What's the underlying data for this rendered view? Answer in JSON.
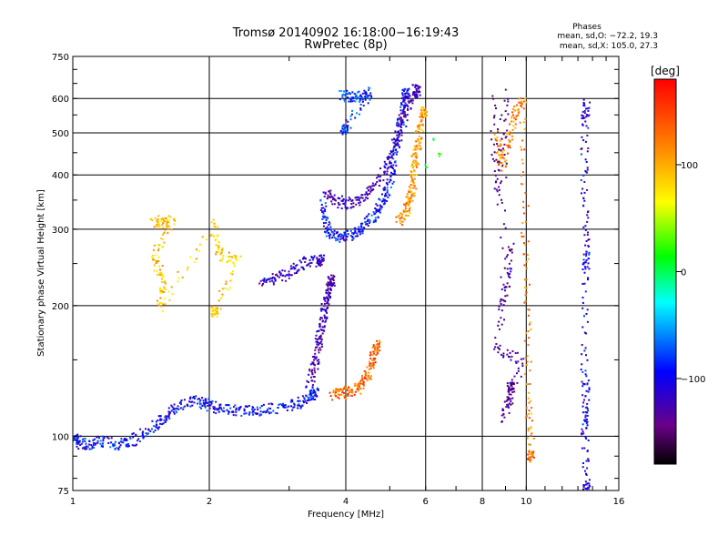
{
  "chart_data": {
    "type": "scatter",
    "title": "Tromsø 20140902 16:18:00−16:19:43",
    "subtitle": "RwPretec (8p)",
    "xlabel": "Frequency [MHz]",
    "ylabel": "Stationary phase Virtual Height [km]",
    "x_scale": "log",
    "y_scale": "log",
    "xlim": [
      1,
      16
    ],
    "ylim": [
      75,
      750
    ],
    "xticks": [
      1,
      2,
      4,
      6,
      8,
      10,
      16
    ],
    "xtick_labels": [
      "1",
      "2",
      "4",
      "6",
      "8",
      "10",
      "16"
    ],
    "yticks": [
      75,
      100,
      200,
      300,
      400,
      500,
      600,
      750
    ],
    "ytick_labels": [
      "75",
      "100",
      "200",
      "300",
      "400",
      "500",
      "600",
      "750"
    ],
    "grid": true,
    "legend": {
      "title": "Phases",
      "lines": [
        "mean, sd,O: −72.2, 19.3",
        "mean, sd,X: 105.0, 27.3"
      ]
    },
    "colorbar": {
      "label": "[deg]",
      "min": -180,
      "max": 180,
      "ticks": [
        100,
        0,
        -100
      ],
      "tick_labels": [
        "100",
        "0",
        "−100"
      ],
      "colors": [
        "#ff0000",
        "#ff8800",
        "#ffff00",
        "#00ff00",
        "#00ffff",
        "#0000ff",
        "#6a0088",
        "#000000"
      ]
    },
    "traces": [
      {
        "name": "",
        "phase": -80,
        "points": [
          [
            1.0,
            100
          ],
          [
            1.03,
            97
          ],
          [
            1.08,
            96
          ],
          [
            1.15,
            98
          ],
          [
            1.25,
            96
          ],
          [
            1.32,
            97
          ],
          [
            1.45,
            103
          ],
          [
            1.55,
            108
          ],
          [
            1.62,
            114
          ],
          [
            1.75,
            120
          ],
          [
            1.9,
            121
          ],
          [
            2.0,
            118
          ],
          [
            2.1,
            116
          ],
          [
            2.3,
            115
          ],
          [
            2.5,
            115
          ],
          [
            2.7,
            116
          ],
          [
            3.0,
            118
          ],
          [
            3.2,
            121
          ],
          [
            3.4,
            126
          ]
        ]
      },
      {
        "name": "",
        "phase": -110,
        "points": [
          [
            3.3,
            132
          ],
          [
            3.4,
            145
          ],
          [
            3.45,
            160
          ],
          [
            3.5,
            175
          ],
          [
            3.55,
            190
          ],
          [
            3.6,
            205
          ],
          [
            3.65,
            218
          ],
          [
            3.7,
            230
          ]
        ]
      },
      {
        "name": "",
        "phase": 140,
        "points": [
          [
            3.7,
            125
          ],
          [
            3.9,
            126
          ],
          [
            4.1,
            128
          ],
          [
            4.3,
            130
          ],
          [
            4.45,
            138
          ],
          [
            4.55,
            150
          ],
          [
            4.65,
            162
          ]
        ]
      },
      {
        "name": "",
        "phase": -100,
        "points": [
          [
            2.6,
            228
          ],
          [
            2.8,
            232
          ],
          [
            3.0,
            240
          ],
          [
            3.2,
            252
          ],
          [
            3.5,
            255
          ]
        ]
      },
      {
        "name": "",
        "phase": -80,
        "points": [
          [
            3.55,
            345
          ],
          [
            3.6,
            310
          ],
          [
            3.7,
            292
          ],
          [
            3.9,
            288
          ],
          [
            4.1,
            292
          ],
          [
            4.3,
            300
          ],
          [
            4.5,
            315
          ],
          [
            4.7,
            335
          ],
          [
            4.85,
            360
          ],
          [
            5.0,
            395
          ],
          [
            5.1,
            440
          ],
          [
            5.2,
            500
          ],
          [
            5.3,
            560
          ],
          [
            5.4,
            620
          ]
        ]
      },
      {
        "name": "",
        "phase": -110,
        "points": [
          [
            3.6,
            370
          ],
          [
            3.8,
            350
          ],
          [
            4.0,
            345
          ],
          [
            4.3,
            350
          ],
          [
            4.6,
            375
          ],
          [
            4.9,
            420
          ],
          [
            5.1,
            470
          ],
          [
            5.3,
            530
          ],
          [
            5.5,
            590
          ],
          [
            5.7,
            630
          ]
        ]
      },
      {
        "name": "",
        "phase": 120,
        "points": [
          [
            5.2,
            315
          ],
          [
            5.4,
            330
          ],
          [
            5.5,
            350
          ],
          [
            5.6,
            380
          ],
          [
            5.65,
            420
          ],
          [
            5.7,
            460
          ],
          [
            5.8,
            500
          ],
          [
            5.9,
            560
          ]
        ]
      },
      {
        "name": "",
        "phase": -70,
        "points": [
          [
            3.9,
            615
          ],
          [
            4.1,
            608
          ],
          [
            4.3,
            612
          ],
          [
            4.5,
            625
          ],
          [
            3.95,
            510
          ]
        ]
      },
      {
        "name": "",
        "phase": 20,
        "points": [
          [
            6.2,
            480
          ],
          [
            6.4,
            450
          ],
          [
            6.0,
            420
          ]
        ]
      },
      {
        "name": "",
        "phase": 130,
        "points": [
          [
            8.6,
            500
          ],
          [
            8.8,
            420
          ],
          [
            9.1,
            480
          ],
          [
            9.4,
            560
          ],
          [
            9.8,
            600
          ],
          [
            9.9,
            300
          ],
          [
            10.0,
            200
          ],
          [
            10.1,
            120
          ],
          [
            10.2,
            90
          ]
        ]
      },
      {
        "name": "",
        "phase": -120,
        "points": [
          [
            8.4,
            610
          ],
          [
            8.6,
            350
          ],
          [
            9.0,
            620
          ],
          [
            8.8,
            190
          ],
          [
            9.3,
            280
          ],
          [
            8.5,
            160
          ],
          [
            9.7,
            150
          ],
          [
            8.9,
            110
          ],
          [
            9.2,
            130
          ]
        ]
      },
      {
        "name": "",
        "phase": -90,
        "points": [
          [
            13.5,
            590
          ],
          [
            13.4,
            540
          ],
          [
            13.4,
            380
          ],
          [
            13.5,
            270
          ],
          [
            13.5,
            240
          ],
          [
            13.4,
            140
          ],
          [
            13.5,
            118
          ],
          [
            13.4,
            103
          ],
          [
            13.5,
            76
          ]
        ]
      },
      {
        "name": "",
        "phase": 100,
        "points": [
          [
            1.5,
            320
          ],
          [
            1.55,
            310
          ],
          [
            1.65,
            315
          ],
          [
            1.5,
            260
          ],
          [
            1.58,
            230
          ],
          [
            1.55,
            200
          ],
          [
            2.05,
            310
          ],
          [
            2.1,
            262
          ],
          [
            2.3,
            255
          ],
          [
            2.05,
            195
          ]
        ]
      }
    ]
  }
}
